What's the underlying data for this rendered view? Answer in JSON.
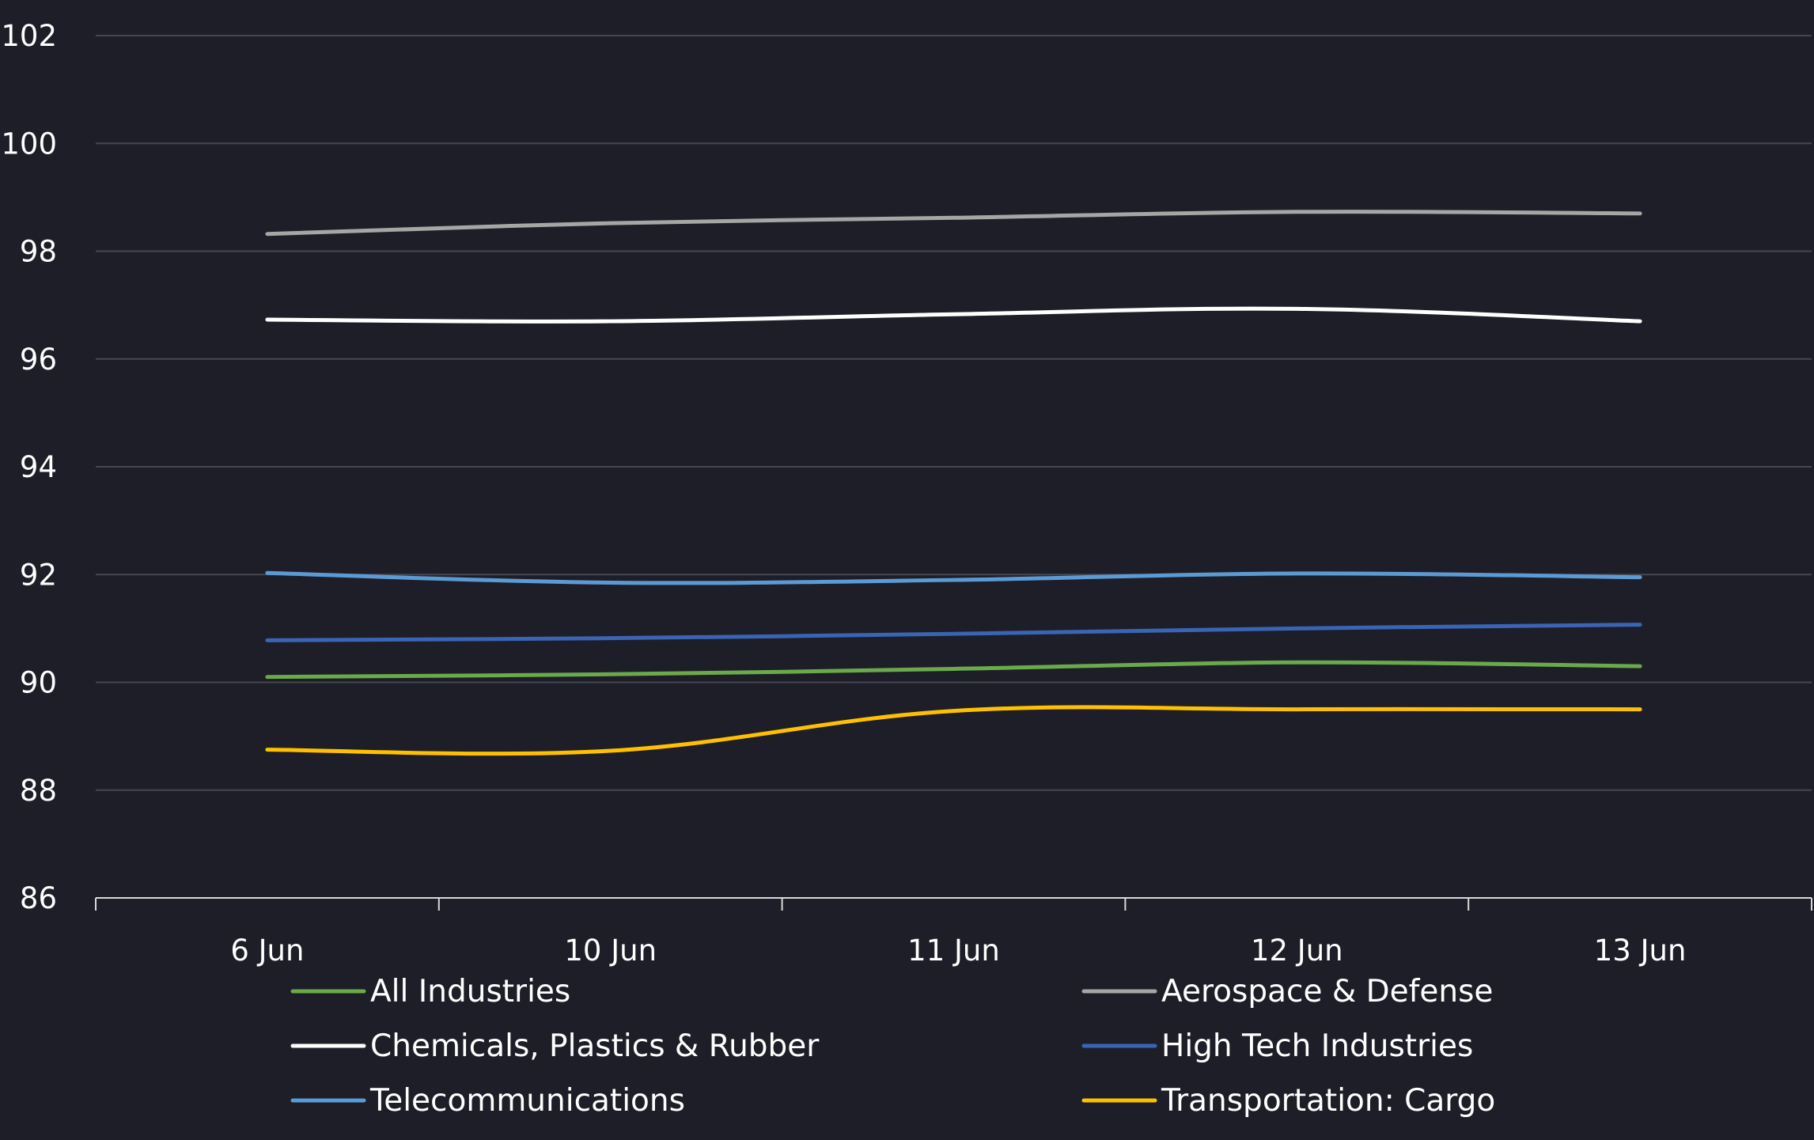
{
  "chart_data": {
    "type": "line",
    "title": "",
    "xlabel": "",
    "ylabel": "",
    "categories": [
      "6 Jun",
      "10 Jun",
      "11 Jun",
      "12 Jun",
      "13 Jun"
    ],
    "ylim": [
      86,
      102
    ],
    "yticks": [
      86,
      88,
      90,
      92,
      94,
      96,
      98,
      100,
      102
    ],
    "grid": true,
    "legend_position": "bottom",
    "background_color": "#1e1e28",
    "series": [
      {
        "name": "All Industries",
        "color": "#6aaa4a",
        "values": [
          90.1,
          90.15,
          90.25,
          90.37,
          90.3
        ]
      },
      {
        "name": "Aerospace & Defense",
        "color": "#a6a6a6",
        "values": [
          98.32,
          98.52,
          98.62,
          98.73,
          98.7
        ]
      },
      {
        "name": "Chemicals, Plastics & Rubber",
        "color": "#ffffff",
        "values": [
          96.73,
          96.7,
          96.83,
          96.93,
          96.7
        ]
      },
      {
        "name": "High Tech Industries",
        "color": "#3a64b4",
        "values": [
          90.78,
          90.82,
          90.9,
          91.0,
          91.07
        ]
      },
      {
        "name": "Telecommunications",
        "color": "#5b9bd5",
        "values": [
          92.03,
          91.85,
          91.9,
          92.02,
          91.95
        ]
      },
      {
        "name": "Transportation: Cargo",
        "color": "#ffc000",
        "values": [
          88.75,
          88.73,
          89.47,
          89.5,
          89.5
        ]
      }
    ]
  }
}
